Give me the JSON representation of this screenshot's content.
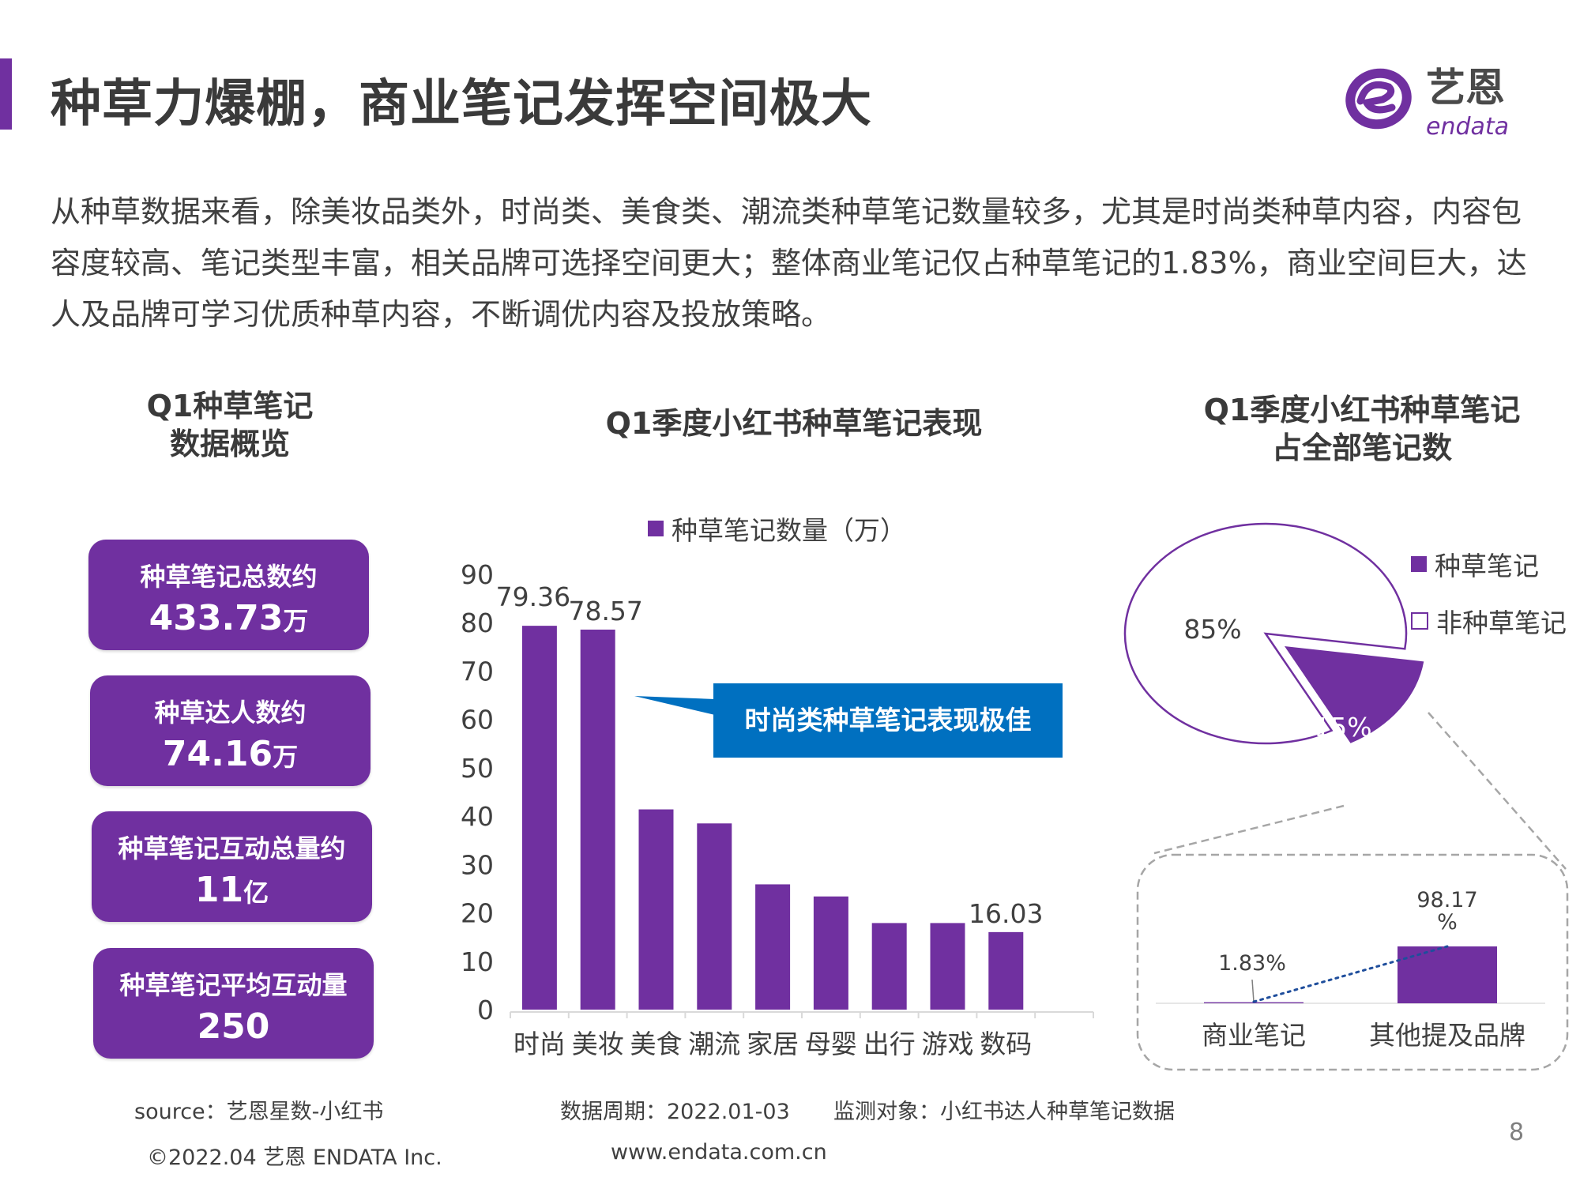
{
  "header": {
    "title": "种草力爆棚，商业笔记发挥空间极大",
    "logo_cn": "艺恩",
    "logo_en": "endata"
  },
  "intro": "从种草数据来看，除美妆品类外，时尚类、美食类、潮流类种草笔记数量较多，尤其是时尚类种草内容，内容包容度较高、笔记类型丰富，相关品牌可选择空间更大；整体商业笔记仅占种草笔记的1.83%，商业空间巨大，达人及品牌可学习优质种草内容，不断调优内容及投放策略。",
  "overview": {
    "title": "Q1种草笔记\n数据概览",
    "cards": [
      {
        "label": "种草笔记总数约",
        "value": "433.73",
        "unit": "万"
      },
      {
        "label": "种草达人数约",
        "value": "74.16",
        "unit": "万"
      },
      {
        "label": "种草笔记互动总量约",
        "value": "11",
        "unit": "亿"
      },
      {
        "label": "种草笔记平均互动量",
        "value": "250",
        "unit": ""
      }
    ]
  },
  "colors": {
    "purple": "#7030a0",
    "blue": "#0070c0",
    "axis": "#d9d9d9"
  },
  "chart_data": [
    {
      "type": "bar",
      "title": "Q1季度小红书种草笔记表现",
      "legend": "种草笔记数量（万）",
      "legend_position": "top",
      "categories": [
        "时尚",
        "美妆",
        "美食",
        "潮流",
        "家居",
        "母婴",
        "出行",
        "游戏",
        "数码"
      ],
      "values": [
        79.36,
        78.57,
        41.4,
        38.5,
        25.9,
        23.4,
        17.9,
        17.9,
        16.03
      ],
      "data_labels": [
        "79.36",
        "78.57",
        "",
        "",
        "",
        "",
        "",
        "",
        "16.03"
      ],
      "ylim": [
        0,
        90
      ],
      "yticks": [
        "0",
        "10",
        "20",
        "30",
        "40",
        "50",
        "60",
        "70",
        "80",
        "90"
      ],
      "grid": false,
      "annotation": "时尚类种草笔记表现极佳"
    },
    {
      "type": "pie",
      "title": "Q1季度小红书种草笔记\n占全部笔记数",
      "slices": [
        {
          "name": "种草笔记",
          "value": 15,
          "label": "15%"
        },
        {
          "name": "非种草笔记",
          "value": 85,
          "label": "85%"
        }
      ],
      "legend_position": "right"
    },
    {
      "type": "bar",
      "title": "",
      "categories": [
        "商业笔记",
        "其他提及品牌"
      ],
      "values": [
        1.83,
        98.17
      ],
      "data_labels": [
        "1.83%",
        "98.17\n%"
      ]
    }
  ],
  "footer": {
    "source": "source：艺恩星数-小红书",
    "period": "数据周期：2022.01-03",
    "target": "监测对象：小红书达人种草笔记数据",
    "copyright": "©2022.04 艺恩 ENDATA Inc.",
    "url": "www.endata.com.cn",
    "page": "8"
  }
}
